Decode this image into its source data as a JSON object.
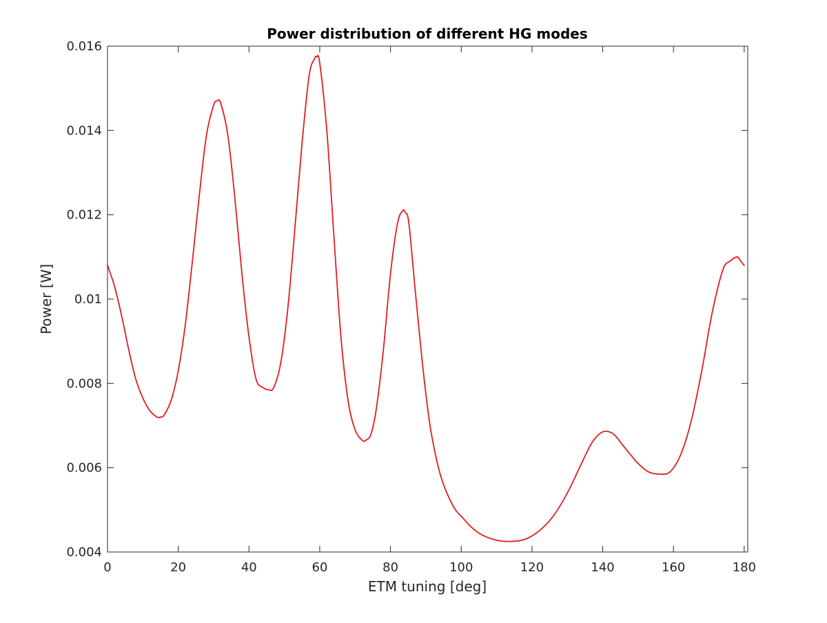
{
  "chart_data": {
    "type": "line",
    "title": "Power distribution of different HG modes",
    "xlabel": "ETM tuning [deg]",
    "ylabel": "Power [W]",
    "xlim": [
      0,
      181
    ],
    "ylim": [
      0.004,
      0.016
    ],
    "xticks": [
      0,
      20,
      40,
      60,
      80,
      100,
      120,
      140,
      160,
      180
    ],
    "xtick_labels": [
      "0",
      "20",
      "40",
      "60",
      "80",
      "100",
      "120",
      "140",
      "160",
      "180"
    ],
    "yticks": [
      0.004,
      0.006,
      0.008,
      0.01,
      0.012,
      0.014,
      0.016
    ],
    "ytick_labels": [
      "0.004",
      "0.006",
      "0.008",
      "0.01",
      "0.012",
      "0.014",
      "0.016"
    ],
    "grid": false,
    "box": true,
    "series": [
      {
        "color": "#e41a1c",
        "x": [
          0,
          2,
          4,
          6,
          8,
          10,
          12,
          14,
          15,
          16,
          18,
          20,
          22,
          24,
          26,
          28,
          30,
          31,
          32,
          34,
          36,
          38,
          40,
          42,
          44,
          45.5,
          47,
          49,
          51,
          53,
          55,
          57,
          58.5,
          59.2,
          60,
          62,
          64,
          66,
          68,
          70,
          72,
          73,
          74.5,
          76,
          78,
          80,
          82,
          83.5,
          84.2,
          85.2,
          87,
          89,
          91,
          93,
          95,
          98,
          100,
          103,
          106,
          110,
          114,
          118,
          122,
          126,
          130,
          134,
          137,
          140,
          143,
          146,
          150,
          153,
          156,
          159,
          162,
          165,
          168,
          171,
          174,
          176,
          178,
          179,
          180
        ],
        "y": [
          0.0108,
          0.0103,
          0.0096,
          0.0088,
          0.0081,
          0.00765,
          0.00735,
          0.0072,
          0.0072,
          0.00725,
          0.0076,
          0.0083,
          0.0094,
          0.0109,
          0.0125,
          0.0139,
          0.0146,
          0.0147,
          0.01465,
          0.0139,
          0.0124,
          0.0106,
          0.0091,
          0.0081,
          0.0079,
          0.00785,
          0.0079,
          0.0085,
          0.0098,
          0.0117,
          0.0137,
          0.0153,
          0.0157,
          0.01575,
          0.0156,
          0.014,
          0.0115,
          0.0091,
          0.0076,
          0.0069,
          0.00665,
          0.00665,
          0.0068,
          0.0074,
          0.0088,
          0.0106,
          0.0118,
          0.0121,
          0.01205,
          0.0118,
          0.0102,
          0.0085,
          0.0071,
          0.0062,
          0.0056,
          0.00505,
          0.00485,
          0.00458,
          0.0044,
          0.00428,
          0.00425,
          0.0043,
          0.0045,
          0.00485,
          0.0054,
          0.0061,
          0.0066,
          0.00685,
          0.0068,
          0.0065,
          0.0061,
          0.0059,
          0.00585,
          0.0059,
          0.0063,
          0.0071,
          0.0083,
          0.0097,
          0.0107,
          0.0109,
          0.011,
          0.0109,
          0.0108
        ]
      }
    ]
  }
}
